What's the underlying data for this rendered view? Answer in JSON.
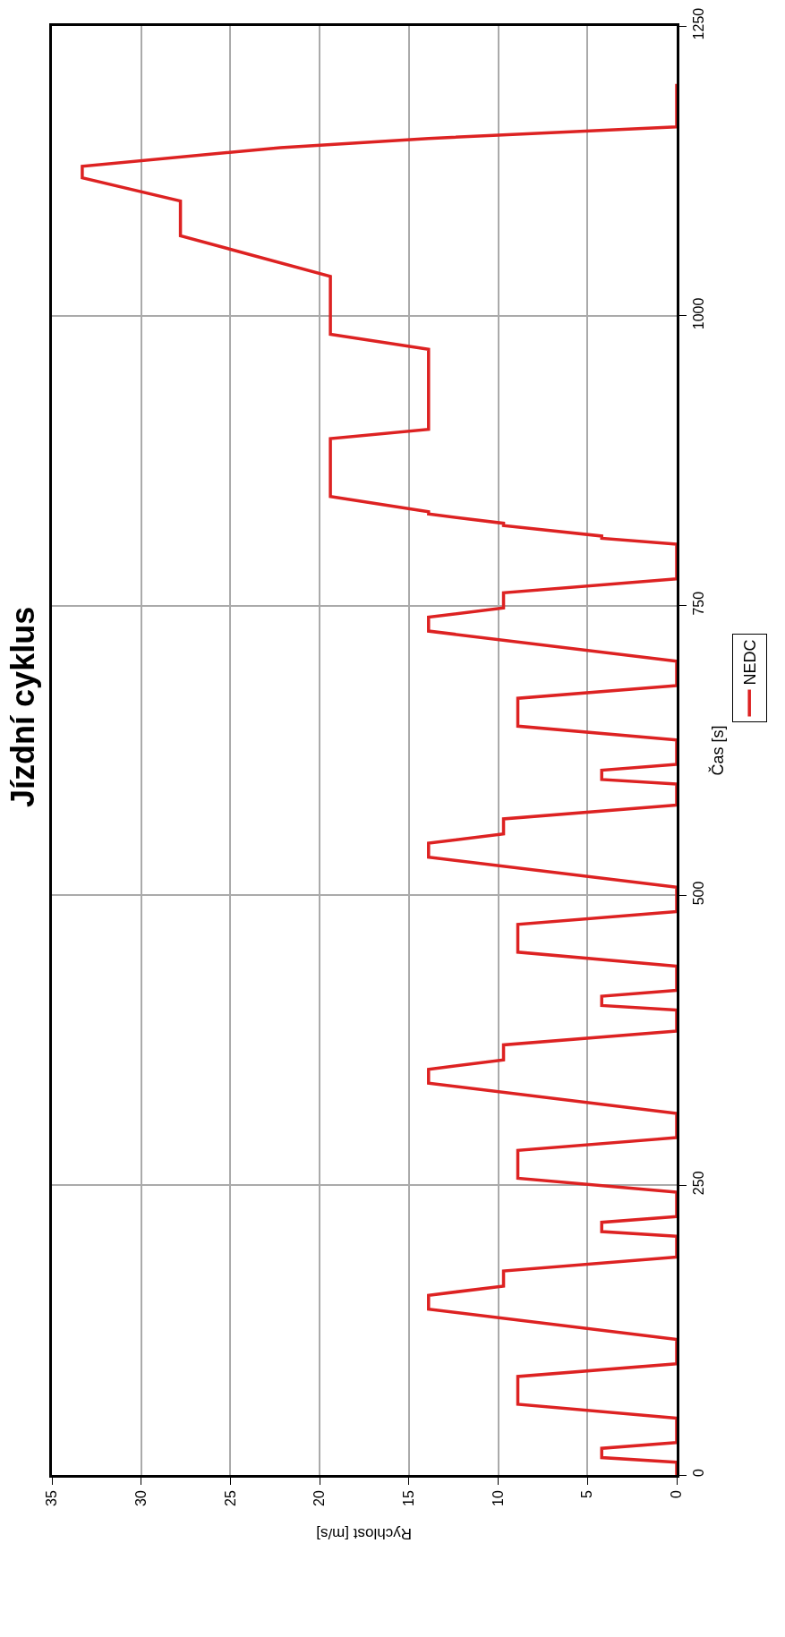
{
  "chart_data": {
    "type": "line",
    "title": "Jízdní cyklus",
    "xlabel": "Rychlost [m/s]",
    "ylabel": "Čas [s]",
    "x": [
      0,
      0,
      4.2,
      4.2,
      0,
      0,
      8.9,
      8.9,
      0,
      0,
      13.9,
      13.9,
      9.7,
      9.7,
      0,
      0,
      0,
      4.2,
      4.2,
      0,
      0,
      8.9,
      8.9,
      0,
      0,
      13.9,
      13.9,
      9.7,
      9.7,
      0,
      0,
      0,
      4.2,
      4.2,
      0,
      0,
      8.9,
      8.9,
      0,
      0,
      13.9,
      13.9,
      9.7,
      9.7,
      0,
      0,
      0,
      4.2,
      4.2,
      0,
      0,
      8.9,
      8.9,
      0,
      0,
      13.9,
      13.9,
      9.7,
      9.7,
      0,
      0,
      0,
      4.2,
      4.2,
      9.7,
      9.7,
      13.9,
      13.9,
      19.4,
      19.4,
      13.9,
      13.9,
      19.4,
      19.4,
      27.8,
      27.8,
      33.3,
      33.3,
      22.2,
      13.9,
      0,
      0
    ],
    "series": [
      {
        "name": "NEDC",
        "color": "#dd2222",
        "values": [
          0,
          11,
          15,
          23,
          28,
          49,
          61,
          85,
          96,
          117,
          143,
          155,
          163,
          176,
          188,
          195,
          206,
          210,
          218,
          223,
          244,
          256,
          280,
          291,
          312,
          338,
          350,
          358,
          371,
          383,
          390,
          401,
          405,
          413,
          418,
          439,
          451,
          475,
          486,
          507,
          533,
          545,
          553,
          566,
          578,
          585,
          596,
          600,
          608,
          613,
          634,
          646,
          670,
          681,
          702,
          728,
          740,
          748,
          761,
          773,
          780,
          803,
          808,
          810,
          819,
          821,
          829,
          831,
          844,
          894,
          902,
          971,
          984,
          1034,
          1069,
          1099,
          1119,
          1129,
          1145,
          1153,
          1163,
          1200
        ]
      }
    ],
    "xlim": [
      35,
      0
    ],
    "xticks": [
      35,
      30,
      25,
      20,
      15,
      10,
      5,
      0
    ],
    "ylim": [
      0,
      1250
    ],
    "yticks": [
      0,
      250,
      500,
      750,
      1000,
      1250
    ],
    "grid": true,
    "legend": "right",
    "marker": "none",
    "line_style": "solid"
  }
}
